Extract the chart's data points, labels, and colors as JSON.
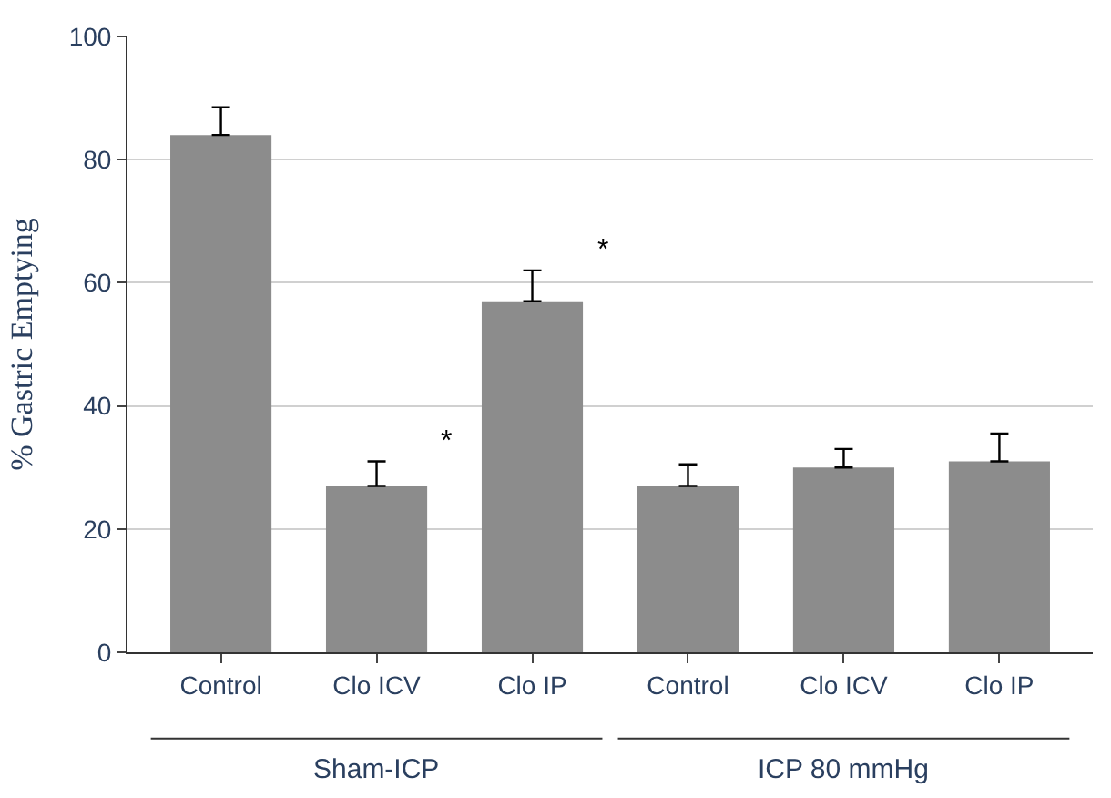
{
  "chart_data": {
    "type": "bar",
    "ylabel": "% Gastric Emptying",
    "categories": [
      "Control",
      "Clo ICV",
      "Clo IP",
      "Control",
      "Clo ICV",
      "Clo IP"
    ],
    "values": [
      84,
      27,
      57,
      27,
      30,
      31
    ],
    "errors": [
      [
        84,
        88.5
      ],
      [
        27,
        31
      ],
      [
        57,
        62
      ],
      [
        27,
        30.5
      ],
      [
        30,
        33
      ],
      [
        31,
        35.5
      ]
    ],
    "color": "#8c8c8c",
    "ylim": [
      0,
      100
    ],
    "yticks": [
      0,
      20,
      40,
      60,
      80,
      100
    ],
    "grid": "y",
    "value_labels": [
      null,
      "*",
      "*",
      null,
      null,
      null
    ],
    "annotations": [
      "Sham-ICP",
      "ICP 80 mmHg"
    ]
  }
}
